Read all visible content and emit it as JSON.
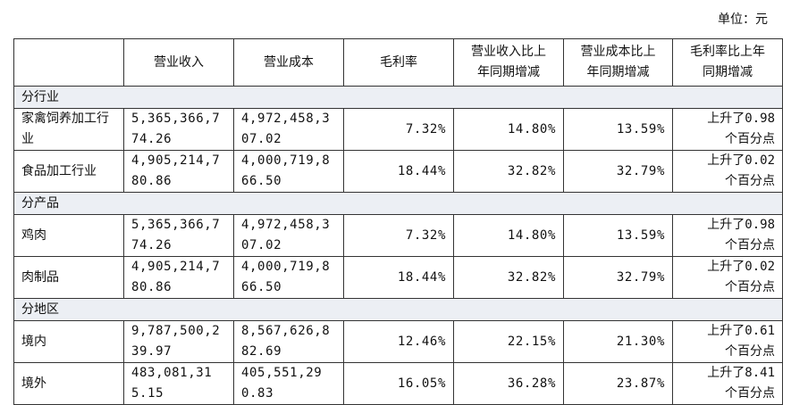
{
  "unit": "单位：元",
  "table": {
    "header": [
      "营业收入",
      "营业成本",
      "毛利率",
      "营业收入比上年同期增减",
      "营业成本比上年同期增减",
      "毛利率比上年同期增减"
    ],
    "sections": [
      {
        "title": "分行业",
        "rows": [
          [
            "家禽饲养加工行业",
            "5,365,366,774.26",
            "4,972,458,307.02",
            "7.32%",
            "14.80%",
            "13.59%",
            "上升了0.98个百分点"
          ],
          [
            "食品加工行业",
            "4,905,214,780.86",
            "4,000,719,866.50",
            "18.44%",
            "32.82%",
            "32.79%",
            "上升了0.02个百分点"
          ]
        ]
      },
      {
        "title": "分产品",
        "rows": [
          [
            "鸡肉",
            "5,365,366,774.26",
            "4,972,458,307.02",
            "7.32%",
            "14.80%",
            "13.59%",
            "上升了0.98个百分点"
          ],
          [
            "肉制品",
            "4,905,214,780.86",
            "4,000,719,866.50",
            "18.44%",
            "32.82%",
            "32.79%",
            "上升了0.02个百分点"
          ]
        ]
      },
      {
        "title": "分地区",
        "rows": [
          [
            "境内",
            "9,787,500,239.97",
            "8,567,626,882.69",
            "12.46%",
            "22.15%",
            "21.30%",
            "上升了0.61个百分点"
          ],
          [
            "境外",
            "483,081,315.15",
            "405,551,290.83",
            "16.05%",
            "36.28%",
            "23.87%",
            "上升了8.41个百分点"
          ]
        ]
      }
    ]
  }
}
